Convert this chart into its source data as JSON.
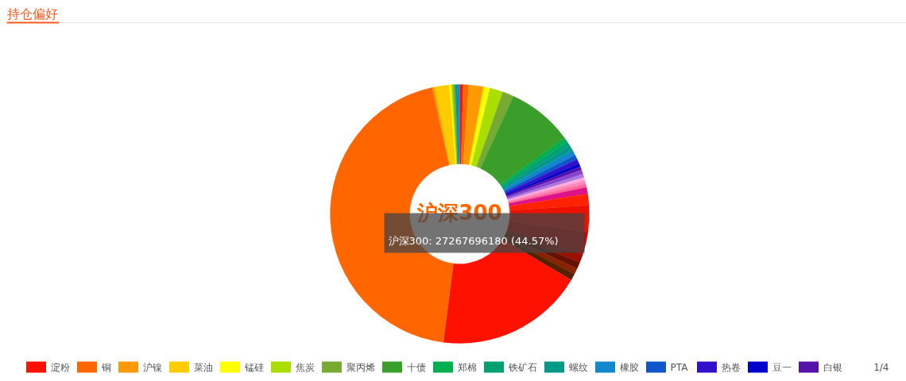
{
  "chart_data": {
    "type": "donut",
    "title": "持仓偏好",
    "categories": [
      "淀粉",
      "铜",
      "沪镍",
      "菜油",
      "锰硅",
      "焦炭",
      "聚丙烯",
      "十债",
      "郑棉",
      "铁矿石",
      "螺纹",
      "橡胶",
      "PTA",
      "热卷",
      "豆一",
      "白银",
      null,
      null,
      null,
      null,
      null,
      null,
      null,
      null,
      null,
      null,
      null,
      null,
      null,
      null,
      null,
      null,
      null,
      null,
      null,
      null,
      null,
      null
    ],
    "values": [
      0.42,
      0.69,
      1.81,
      0.14,
      0.69,
      1.67,
      1.39,
      8.19,
      0.56,
      0.56,
      0.69,
      0.69,
      0.56,
      0.56,
      0.42,
      0.42,
      0.56,
      0.42,
      0.42,
      0.42,
      0.42,
      0.83,
      1.39,
      3.33,
      2.78,
      1.11,
      0.83,
      0.72,
      0.83,
      18.5,
      44.57,
      0.28,
      1.85,
      0.22,
      0.22,
      0.28,
      0.28,
      0.28
    ],
    "colors": [
      "#ff1100",
      "#ff6600",
      "#ff9900",
      "#ffcc00",
      "#ffff00",
      "#aadd00",
      "#77aa33",
      "#3a9e2a",
      "#00b050",
      "#00a070",
      "#009988",
      "#1188cc",
      "#1155cc",
      "#3311cc",
      "#0000cc",
      "#5511aa",
      "#8844cc",
      "#aa77dd",
      "#ffaadd",
      "#ff88bb",
      "#ff6699",
      "#dd1188",
      "#ff2200",
      "#ee1100",
      "#cc0000",
      "#991100",
      "#661100",
      "#882200",
      "#552200",
      "#ff1100",
      "#ff6600",
      "#ff9900",
      "#ffcc00",
      "#ffff00",
      "#aadd00",
      "#77aa33",
      "#009988",
      "#1188cc"
    ],
    "legend": "bottom",
    "annotations": [
      "沪深300",
      "沪深300: 27267696180 (44.57%)",
      "1/4"
    ]
  }
}
